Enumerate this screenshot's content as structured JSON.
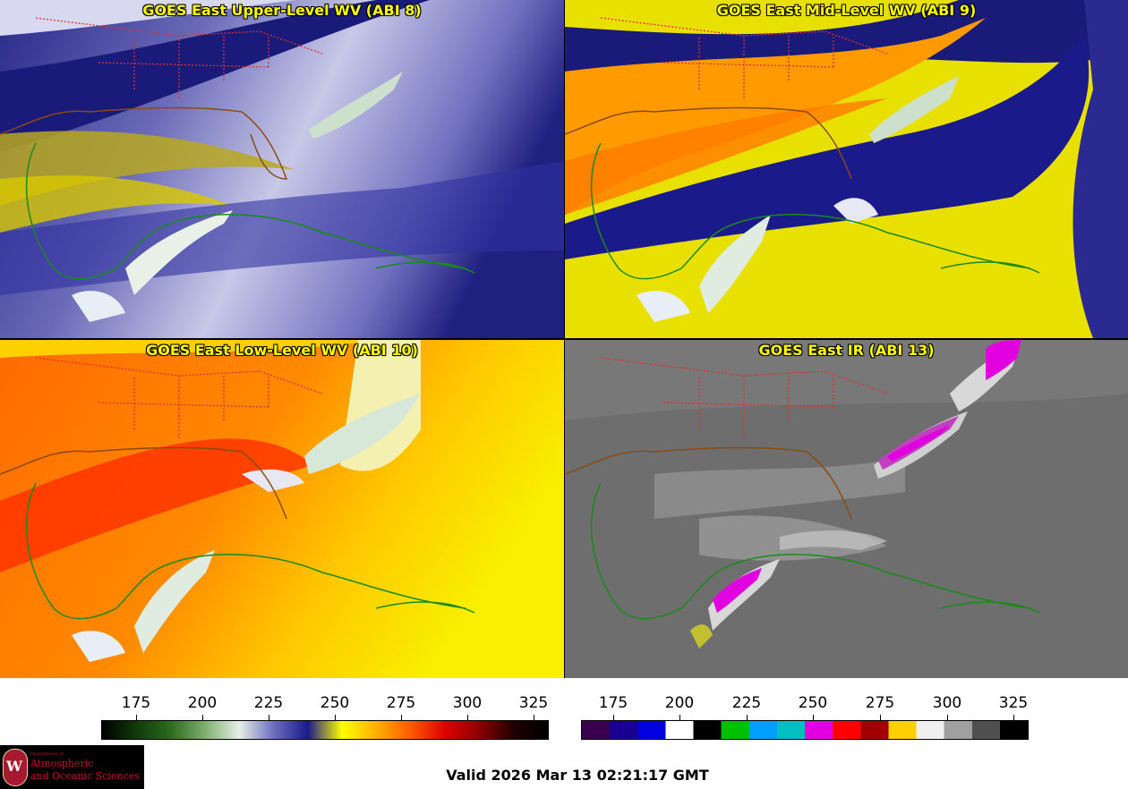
{
  "panels": [
    {
      "title": "GOES East Upper-Level WV (ABI 8)",
      "scheme": "wv_dark"
    },
    {
      "title": "GOES East Mid-Level WV (ABI 9)",
      "scheme": "wv_mid"
    },
    {
      "title": "GOES East Low-Level WV (ABI 10)",
      "scheme": "wv_low"
    },
    {
      "title": "GOES East IR (ABI 13)",
      "scheme": "ir"
    }
  ],
  "colorbars": {
    "wv": {
      "ticks": [
        "175",
        "200",
        "225",
        "250",
        "275",
        "300",
        "325"
      ],
      "tick_values": [
        175,
        200,
        225,
        250,
        275,
        300,
        325
      ],
      "range": [
        162,
        330
      ],
      "stops": [
        "#000000",
        "#0f3a0a",
        "#2d6b1e",
        "#7fae6e",
        "#e6efe6",
        "#6e6fbf",
        "#1a1a8c",
        "#ffff00",
        "#ffb000",
        "#ff5a00",
        "#e00000",
        "#8a0000",
        "#200000",
        "#000000"
      ]
    },
    "ir": {
      "ticks": [
        "175",
        "200",
        "225",
        "250",
        "275",
        "300",
        "325"
      ],
      "tick_values": [
        175,
        200,
        225,
        250,
        275,
        300,
        325
      ],
      "range": [
        163,
        330
      ],
      "segments": [
        "#3a0050",
        "#1a0090",
        "#0000e0",
        "#ffffff",
        "#000000",
        "#00c000",
        "#00a0ff",
        "#00c0c0",
        "#e000e0",
        "#ff0000",
        "#a00000",
        "#ffd000",
        "#f0f0f0",
        "#a0a0a0",
        "#505050",
        "#000000"
      ]
    },
    "colors": {
      "border_states": "#e03030",
      "coast": "#1a8a1a",
      "coast_land": "#8a4a10"
    }
  },
  "logo": {
    "line1": "Department of",
    "line2": "Atmospheric",
    "line3": "and Oceanic Sciences",
    "seal_letter": "W"
  },
  "valid_time": "Valid 2026 Mar 13 02:21:17 GMT"
}
